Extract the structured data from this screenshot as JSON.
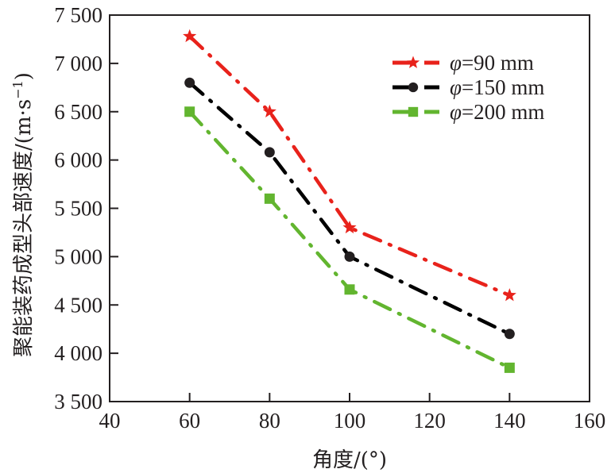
{
  "chart_data": {
    "type": "line",
    "title": "",
    "xlabel": "角度/(°)",
    "ylabel": "聚能装药成型头部速度/(m·s⁻¹)",
    "ylabel_parts": {
      "main": "聚能装药成型头部速度/(m·s",
      "sup": "−1",
      "close": ")"
    },
    "xlim": [
      40,
      160
    ],
    "ylim": [
      3500,
      7500
    ],
    "xticks": [
      40,
      60,
      80,
      100,
      120,
      140,
      160
    ],
    "xtick_labels": [
      "40",
      "60",
      "80",
      "100",
      "120",
      "140",
      "160"
    ],
    "yticks": [
      3500,
      4000,
      4500,
      5000,
      5500,
      6000,
      6500,
      7000,
      7500
    ],
    "ytick_labels": [
      "3 500",
      "4 000",
      "4 500",
      "5 000",
      "5 500",
      "6 000",
      "6 500",
      "7 000",
      "7 500"
    ],
    "grid": false,
    "legend_position": "top-right",
    "x": [
      60,
      80,
      100,
      140
    ],
    "series": [
      {
        "name": "φ=90 mm",
        "symbol": "φ",
        "label_rest": "=90 mm",
        "color": "#e8221b",
        "marker": "star",
        "values": [
          7280,
          6500,
          5300,
          4600
        ]
      },
      {
        "name": "φ=150 mm",
        "symbol": "φ",
        "label_rest": "=150 mm",
        "color": "#000000",
        "marker": "circle",
        "values": [
          6800,
          6080,
          5000,
          4200
        ]
      },
      {
        "name": "φ=200 mm",
        "symbol": "φ",
        "label_rest": "=200 mm",
        "color": "#62b52f",
        "marker": "square",
        "values": [
          6500,
          5600,
          4660,
          3850
        ]
      }
    ]
  }
}
